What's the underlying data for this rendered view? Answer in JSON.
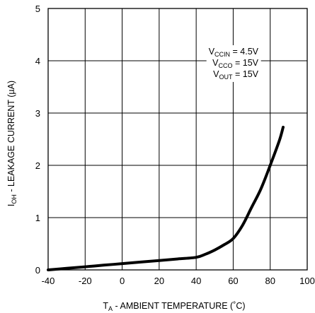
{
  "chart_data": {
    "type": "line",
    "x": [
      -40,
      -30,
      -20,
      -10,
      0,
      10,
      20,
      30,
      40,
      45,
      50,
      55,
      60,
      65,
      70,
      75,
      80,
      85,
      87
    ],
    "series": [
      {
        "values": [
          0.0,
          0.03,
          0.06,
          0.09,
          0.12,
          0.15,
          0.18,
          0.21,
          0.24,
          0.3,
          0.38,
          0.48,
          0.6,
          0.85,
          1.2,
          1.55,
          2.0,
          2.48,
          2.73
        ]
      }
    ],
    "xlim": [
      -40,
      100
    ],
    "ylim": [
      0,
      5
    ],
    "xticks": [
      "-40",
      "-20",
      "0",
      "20",
      "40",
      "60",
      "80",
      "100"
    ],
    "yticks": [
      "0",
      "1",
      "2",
      "3",
      "4",
      "5"
    ],
    "xlabel": {
      "main": "T",
      "sub": "A",
      "rest": " - AMBIENT  TEMPERATURE (˚C)"
    },
    "ylabel": {
      "main": "I",
      "sub": "OH",
      "rest": " - LEAKAGE CURRENT (µA)"
    },
    "conditions": [
      {
        "main": "V",
        "sub": "CCIN",
        "rest": " = 4.5V"
      },
      {
        "main": "V",
        "sub": "CCO",
        "rest": " = 15V"
      },
      {
        "main": "V",
        "sub": "OUT",
        "rest": " = 15V"
      }
    ],
    "grid": true
  }
}
